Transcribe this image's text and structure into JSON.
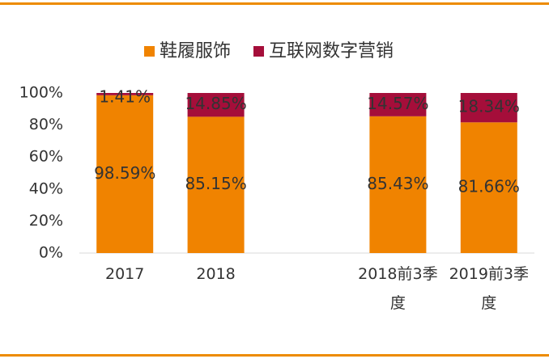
{
  "chart_data": {
    "type": "stacked_bar",
    "categories": [
      "2017",
      "2018",
      null,
      "2018前3季度",
      "2019前3季度"
    ],
    "series": [
      {
        "name": "鞋履服饰",
        "color": "#F08300",
        "values": [
          98.59,
          85.15,
          null,
          85.43,
          81.66
        ],
        "value_labels": [
          "98.59%",
          "85.15%",
          null,
          "85.43%",
          "81.66%"
        ]
      },
      {
        "name": "互联网数字营销",
        "color": "#A50E3A",
        "values": [
          1.41,
          14.85,
          null,
          14.57,
          18.34
        ],
        "value_labels": [
          "1.41%",
          "14.85%",
          null,
          "14.57%",
          "18.34%"
        ]
      }
    ],
    "ylim": [
      0,
      100
    ],
    "yticks": [
      {
        "value": 0,
        "label": "0%"
      },
      {
        "value": 20,
        "label": "20%"
      },
      {
        "value": 40,
        "label": "40%"
      },
      {
        "value": 60,
        "label": "60%"
      },
      {
        "value": 80,
        "label": "80%"
      },
      {
        "value": 100,
        "label": "100%"
      }
    ],
    "legend": "top"
  }
}
